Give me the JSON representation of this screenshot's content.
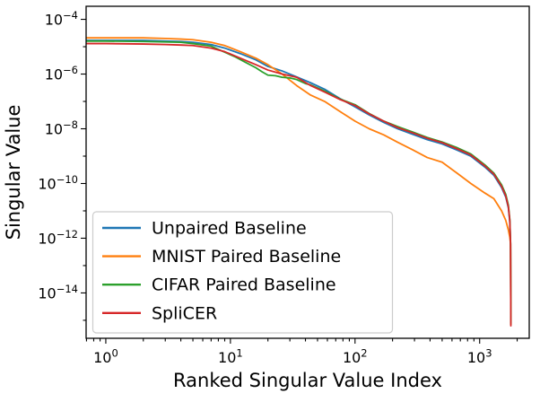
{
  "chart_data": {
    "type": "line",
    "title": "",
    "xlabel": "Ranked Singular Value Index",
    "ylabel": "Singular Value",
    "x_scale": "log",
    "y_scale": "log",
    "xlim": [
      0.695,
      2500
    ],
    "ylim": [
      2.2e-16,
      0.0003
    ],
    "grid": false,
    "axis_color": "#000000",
    "x_ticks": [
      {
        "v": 1,
        "base": "10",
        "exp": "0"
      },
      {
        "v": 10,
        "base": "10",
        "exp": "1"
      },
      {
        "v": 100,
        "base": "10",
        "exp": "2"
      },
      {
        "v": 1000,
        "base": "10",
        "exp": "3"
      }
    ],
    "y_ticks": [
      {
        "v": 0.0001,
        "base": "10",
        "exp": "−4"
      },
      {
        "v": 1e-06,
        "base": "10",
        "exp": "−6"
      },
      {
        "v": 1e-08,
        "base": "10",
        "exp": "−8"
      },
      {
        "v": 1e-10,
        "base": "10",
        "exp": "−10"
      },
      {
        "v": 1e-12,
        "base": "10",
        "exp": "−12"
      },
      {
        "v": 1e-14,
        "base": "10",
        "exp": "−14"
      }
    ],
    "legend": {
      "position": "lower left",
      "border_color": "#cccccc",
      "bg_color": "#ffffff"
    },
    "series": [
      {
        "name": "Unpaired Baseline",
        "color": "#1f77b4",
        "points": [
          [
            0.7,
            1.7e-05
          ],
          [
            1,
            1.7e-05
          ],
          [
            2,
            1.7e-05
          ],
          [
            3,
            1.6e-05
          ],
          [
            4,
            1.55e-05
          ],
          [
            5,
            1.45e-05
          ],
          [
            7,
            1.2e-05
          ],
          [
            9,
            8.9e-06
          ],
          [
            12,
            5.6e-06
          ],
          [
            16,
            3.3e-06
          ],
          [
            20,
            1.9e-06
          ],
          [
            26,
            1.3e-06
          ],
          [
            34,
            7.9e-07
          ],
          [
            44,
            4.8e-07
          ],
          [
            57,
            2.8e-07
          ],
          [
            75,
            1.3e-07
          ],
          [
            100,
            6.3e-08
          ],
          [
            130,
            3.2e-08
          ],
          [
            170,
            1.7e-08
          ],
          [
            220,
            1e-08
          ],
          [
            290,
            6.3e-09
          ],
          [
            380,
            4e-09
          ],
          [
            500,
            2.8e-09
          ],
          [
            650,
            1.7e-09
          ],
          [
            850,
            1e-09
          ],
          [
            1100,
            4e-10
          ],
          [
            1300,
            2e-10
          ],
          [
            1500,
            7.1e-11
          ],
          [
            1620,
            3.2e-11
          ],
          [
            1700,
            1.3e-11
          ],
          [
            1745,
            4e-12
          ],
          [
            1770,
            6.3e-13
          ],
          [
            1780,
            7.1e-16
          ]
        ]
      },
      {
        "name": "MNIST Paired Baseline",
        "color": "#ff7f0e",
        "points": [
          [
            0.7,
            2.1e-05
          ],
          [
            1,
            2.1e-05
          ],
          [
            2,
            2.1e-05
          ],
          [
            3,
            2e-05
          ],
          [
            4,
            1.9e-05
          ],
          [
            5,
            1.8e-05
          ],
          [
            7,
            1.45e-05
          ],
          [
            9,
            1.1e-05
          ],
          [
            12,
            6.6e-06
          ],
          [
            16,
            3.8e-06
          ],
          [
            20,
            2.2e-06
          ],
          [
            26,
            1e-06
          ],
          [
            34,
            3.8e-07
          ],
          [
            44,
            1.7e-07
          ],
          [
            57,
            1e-07
          ],
          [
            75,
            4.4e-08
          ],
          [
            100,
            1.9e-08
          ],
          [
            130,
            1e-08
          ],
          [
            170,
            6e-09
          ],
          [
            220,
            3.2e-09
          ],
          [
            290,
            1.7e-09
          ],
          [
            380,
            8.9e-10
          ],
          [
            500,
            6e-10
          ],
          [
            650,
            2.5e-10
          ],
          [
            850,
            1e-10
          ],
          [
            1100,
            4.5e-11
          ],
          [
            1300,
            2.8e-11
          ],
          [
            1500,
            1e-11
          ],
          [
            1620,
            4.5e-12
          ],
          [
            1700,
            2e-12
          ],
          [
            1745,
            1.1e-12
          ],
          [
            1770,
            6.3e-13
          ],
          [
            1780,
            7.1e-16
          ]
        ]
      },
      {
        "name": "CIFAR Paired Baseline",
        "color": "#2ca02c",
        "points": [
          [
            0.7,
            1.6e-05
          ],
          [
            1,
            1.6e-05
          ],
          [
            2,
            1.55e-05
          ],
          [
            3,
            1.5e-05
          ],
          [
            4,
            1.45e-05
          ],
          [
            5,
            1.3e-05
          ],
          [
            7,
            1.05e-05
          ],
          [
            9,
            6.3e-06
          ],
          [
            11,
            4.2e-06
          ],
          [
            13,
            2.8e-06
          ],
          [
            16,
            1.7e-06
          ],
          [
            18,
            1.2e-06
          ],
          [
            20,
            9.1e-07
          ],
          [
            23,
            8.7e-07
          ],
          [
            26,
            7.6e-07
          ],
          [
            30,
            7.2e-07
          ],
          [
            34,
            6.3e-07
          ],
          [
            40,
            4.5e-07
          ],
          [
            44,
            4e-07
          ],
          [
            57,
            2.4e-07
          ],
          [
            75,
            1.25e-07
          ],
          [
            100,
            7.6e-08
          ],
          [
            130,
            3.6e-08
          ],
          [
            170,
            1.9e-08
          ],
          [
            220,
            1.2e-08
          ],
          [
            290,
            7.6e-09
          ],
          [
            380,
            4.8e-09
          ],
          [
            500,
            3.3e-09
          ],
          [
            650,
            2.1e-09
          ],
          [
            850,
            1.2e-09
          ],
          [
            1100,
            4.8e-10
          ],
          [
            1300,
            2.4e-10
          ],
          [
            1500,
            8.9e-11
          ],
          [
            1620,
            4e-11
          ],
          [
            1700,
            1.6e-11
          ],
          [
            1745,
            5e-12
          ],
          [
            1770,
            7.1e-13
          ],
          [
            1780,
            7.9e-16
          ]
        ]
      },
      {
        "name": "SpliCER",
        "color": "#d62728",
        "points": [
          [
            0.7,
            1.3e-05
          ],
          [
            1,
            1.3e-05
          ],
          [
            2,
            1.25e-05
          ],
          [
            3,
            1.2e-05
          ],
          [
            4,
            1.15e-05
          ],
          [
            5,
            1.1e-05
          ],
          [
            7,
            8.9e-06
          ],
          [
            9,
            6.6e-06
          ],
          [
            12,
            3.8e-06
          ],
          [
            16,
            2.2e-06
          ],
          [
            20,
            1.4e-06
          ],
          [
            26,
            1e-06
          ],
          [
            34,
            7.6e-07
          ],
          [
            44,
            3.8e-07
          ],
          [
            57,
            2.2e-07
          ],
          [
            75,
            1.2e-07
          ],
          [
            100,
            7.1e-08
          ],
          [
            130,
            3.5e-08
          ],
          [
            170,
            1.9e-08
          ],
          [
            220,
            1.1e-08
          ],
          [
            290,
            7.1e-09
          ],
          [
            380,
            4.5e-09
          ],
          [
            500,
            3.1e-09
          ],
          [
            650,
            1.9e-09
          ],
          [
            850,
            1.1e-09
          ],
          [
            1100,
            4.4e-10
          ],
          [
            1300,
            2.2e-10
          ],
          [
            1500,
            7.9e-11
          ],
          [
            1620,
            3.5e-11
          ],
          [
            1700,
            1.4e-11
          ],
          [
            1745,
            4.5e-12
          ],
          [
            1770,
            6.3e-13
          ],
          [
            1780,
            6.3e-16
          ]
        ]
      }
    ]
  }
}
